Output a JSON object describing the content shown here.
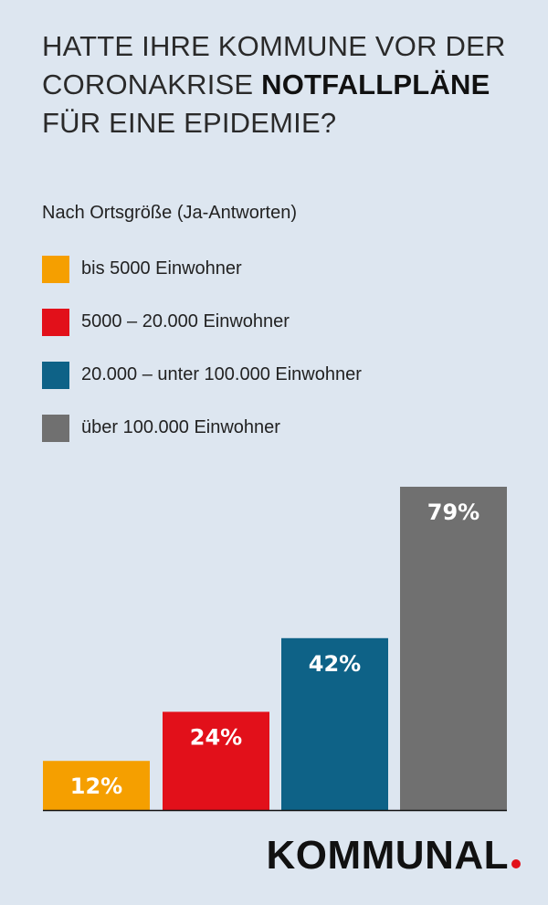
{
  "title": {
    "line1": "HATTE IHRE KOMMUNE VOR DER",
    "line2_prefix": "CORONAKRISE ",
    "line2_emphasis": "NOTFALLPLÄNE",
    "line3": "FÜR EINE EPIDEMIE?"
  },
  "subtitle": "Nach Ortsgröße (Ja-Antworten)",
  "legend": [
    {
      "label": "bis 5000 Einwohner",
      "color": "#f59f00"
    },
    {
      "label": "5000 – 20.000 Einwohner",
      "color": "#e2101a"
    },
    {
      "label": "20.000 – unter 100.000 Einwohner",
      "color": "#0e6287"
    },
    {
      "label": "über 100.000 Einwohner",
      "color": "#707070"
    }
  ],
  "chart_data": {
    "type": "bar",
    "title": "HATTE IHRE KOMMUNE VOR DER CORONAKRISE NOTFALLPLÄNE FÜR EINE EPIDEMIE?",
    "subtitle": "Nach Ortsgröße (Ja-Antworten)",
    "categories": [
      "bis 5000 Einwohner",
      "5000 – 20.000 Einwohner",
      "20.000 – unter 100.000 Einwohner",
      "über 100.000 Einwohner"
    ],
    "values": [
      12,
      24,
      42,
      79
    ],
    "value_labels": [
      "12%",
      "24%",
      "42%",
      "79%"
    ],
    "colors": [
      "#f59f00",
      "#e2101a",
      "#0e6287",
      "#707070"
    ],
    "xlabel": "",
    "ylabel": "",
    "ylim": [
      0,
      79
    ],
    "grid": false,
    "legend_position": "top-left"
  },
  "brand": {
    "name": "KOMMUNAL",
    "dot_color": "#e2101a"
  }
}
